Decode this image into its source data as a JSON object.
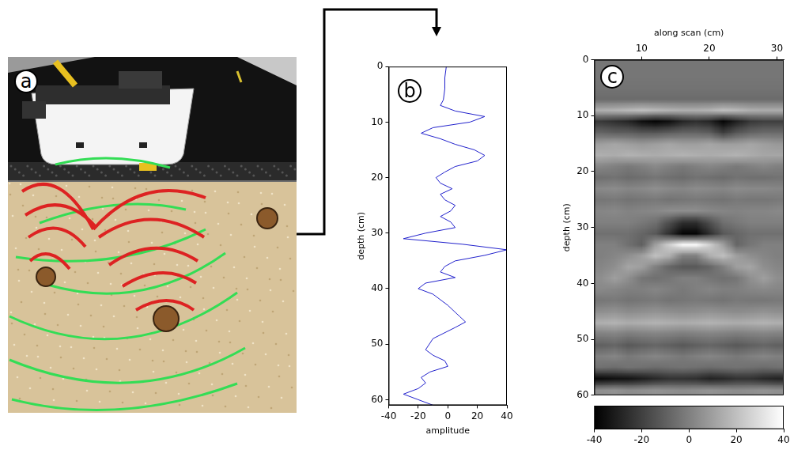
{
  "diagram": {
    "panel_label": "a"
  },
  "chart_data": [
    {
      "type": "line",
      "panel_label": "b",
      "x_label": "amplitude",
      "y_label": "depth (cm)",
      "series": [
        {
          "color": "#2222cc",
          "x": [
            -1,
            -2,
            -2,
            -3,
            -5,
            5,
            25,
            15,
            -10,
            -18,
            -5,
            5,
            18,
            25,
            20,
            5,
            -2,
            -8,
            -5,
            3,
            -5,
            -2,
            5,
            2,
            -5,
            2,
            5,
            -15,
            -30,
            10,
            40,
            25,
            5,
            -2,
            -5,
            5,
            -15,
            -20,
            -10,
            0,
            8,
            12,
            5,
            -10,
            -15,
            -10,
            -2,
            0,
            -12,
            -18,
            -15,
            -20,
            -30,
            -20,
            -10
          ],
          "y": [
            0,
            2,
            4,
            6,
            7,
            8,
            9,
            10,
            11,
            12,
            13,
            14,
            15,
            16,
            17,
            18,
            19,
            20,
            21,
            22,
            23,
            24,
            25,
            26,
            27,
            28,
            29,
            30,
            31,
            32,
            33,
            34,
            35,
            36,
            37,
            38,
            39,
            40,
            41,
            43,
            45,
            46,
            47,
            49,
            51,
            52,
            53,
            54,
            55,
            56,
            57,
            58,
            59,
            60,
            61
          ]
        }
      ],
      "xlim": [
        -40,
        40
      ],
      "xticks": [
        -40,
        -20,
        0,
        20,
        40
      ],
      "ylim": [
        0,
        61
      ],
      "yticks": [
        0,
        10,
        20,
        30,
        40,
        50,
        60
      ],
      "grid": false
    },
    {
      "type": "heatmap",
      "panel_label": "c",
      "x_label": "along scan (cm)",
      "y_label": "depth (cm)",
      "x": [
        4,
        6,
        8,
        10,
        12,
        14,
        16,
        18,
        20,
        22,
        24,
        26,
        28,
        30
      ],
      "y": [
        1,
        3,
        5,
        7,
        9,
        11,
        13,
        15,
        17,
        19,
        21,
        23,
        25,
        27,
        29,
        31,
        33,
        35,
        37,
        39,
        41,
        43,
        45,
        47,
        49,
        51,
        53,
        55,
        57,
        59
      ],
      "cells": [
        [
          -3,
          -3,
          -3,
          -3,
          -3,
          -3,
          -3,
          -3,
          -3,
          -3,
          -3,
          -3,
          -3,
          -3
        ],
        [
          -3,
          -3,
          -3,
          -3,
          -3,
          -3,
          -3,
          -3,
          -3,
          -3,
          -3,
          -3,
          -3,
          -3
        ],
        [
          -4,
          -4,
          -4,
          -4,
          -4,
          -4,
          -4,
          -4,
          -4,
          -4,
          -4,
          -4,
          -4,
          -4
        ],
        [
          -6,
          -6,
          -6,
          -6,
          -6,
          -6,
          -6,
          -6,
          -6,
          -6,
          -6,
          -6,
          -6,
          -6
        ],
        [
          15,
          16,
          18,
          20,
          18,
          16,
          15,
          15,
          16,
          20,
          18,
          15,
          14,
          14
        ],
        [
          -22,
          -25,
          -28,
          -35,
          -38,
          -35,
          -28,
          -25,
          -28,
          -38,
          -30,
          -22,
          -20,
          -20
        ],
        [
          -8,
          -10,
          -10,
          -12,
          -12,
          -10,
          -8,
          -8,
          -10,
          -20,
          -12,
          -8,
          -6,
          -6
        ],
        [
          10,
          12,
          10,
          8,
          10,
          12,
          10,
          10,
          12,
          10,
          10,
          12,
          10,
          8
        ],
        [
          15,
          14,
          16,
          15,
          14,
          15,
          16,
          15,
          14,
          15,
          16,
          14,
          12,
          12
        ],
        [
          2,
          0,
          -2,
          0,
          3,
          0,
          -2,
          0,
          2,
          0,
          -2,
          0,
          2,
          0
        ],
        [
          -5,
          -4,
          -6,
          -5,
          -3,
          -5,
          -6,
          -4,
          -5,
          -6,
          -4,
          -5,
          -5,
          -4
        ],
        [
          3,
          4,
          2,
          3,
          5,
          3,
          2,
          4,
          3,
          2,
          4,
          3,
          3,
          2
        ],
        [
          -3,
          -2,
          -4,
          -3,
          -2,
          -4,
          -3,
          -2,
          -3,
          -4,
          -2,
          -3,
          -3,
          -2
        ],
        [
          2,
          3,
          1,
          2,
          3,
          5,
          5,
          5,
          3,
          2,
          1,
          2,
          2,
          3
        ],
        [
          0,
          0,
          0,
          -2,
          -5,
          -15,
          -25,
          -25,
          -15,
          -5,
          -2,
          0,
          0,
          0
        ],
        [
          -5,
          -5,
          -5,
          -8,
          -12,
          -25,
          -38,
          -38,
          -25,
          -12,
          -8,
          -5,
          -5,
          -5
        ],
        [
          0,
          0,
          -5,
          -10,
          10,
          25,
          38,
          38,
          25,
          10,
          -8,
          -3,
          0,
          0
        ],
        [
          0,
          2,
          5,
          10,
          20,
          15,
          0,
          0,
          15,
          20,
          10,
          5,
          2,
          0
        ],
        [
          2,
          5,
          12,
          10,
          0,
          -8,
          -12,
          -12,
          -8,
          0,
          10,
          12,
          5,
          2
        ],
        [
          5,
          10,
          5,
          -3,
          -5,
          -3,
          0,
          0,
          -3,
          -5,
          -3,
          5,
          10,
          5
        ],
        [
          3,
          2,
          0,
          0,
          2,
          0,
          -2,
          0,
          2,
          0,
          0,
          2,
          3,
          2
        ],
        [
          -3,
          -2,
          -4,
          -3,
          -2,
          -4,
          -3,
          -2,
          -3,
          -4,
          -2,
          -3,
          -3,
          -2
        ],
        [
          5,
          6,
          4,
          5,
          6,
          5,
          4,
          5,
          6,
          5,
          4,
          5,
          6,
          5
        ],
        [
          15,
          16,
          14,
          15,
          16,
          15,
          14,
          15,
          16,
          15,
          14,
          15,
          16,
          15
        ],
        [
          0,
          1,
          -1,
          0,
          1,
          0,
          -1,
          0,
          1,
          0,
          -1,
          0,
          1,
          0
        ],
        [
          -10,
          -8,
          -12,
          -10,
          -8,
          -10,
          -12,
          -10,
          -8,
          -10,
          -12,
          -10,
          -8,
          -10
        ],
        [
          0,
          2,
          -2,
          0,
          2,
          0,
          -2,
          0,
          2,
          0,
          -2,
          0,
          2,
          0
        ],
        [
          -5,
          -6,
          -4,
          -5,
          -6,
          -5,
          -4,
          -5,
          -6,
          -5,
          -4,
          -5,
          -6,
          -5
        ],
        [
          -38,
          -36,
          -35,
          -32,
          -28,
          -25,
          -25,
          -26,
          -30,
          -28,
          -25,
          -25,
          -28,
          -30
        ],
        [
          5,
          6,
          4,
          5,
          6,
          5,
          4,
          5,
          6,
          5,
          4,
          5,
          6,
          5
        ]
      ],
      "xlim": [
        3,
        31
      ],
      "xticks": [
        10,
        20,
        30
      ],
      "ylim": [
        0,
        60
      ],
      "yticks": [
        0,
        10,
        20,
        30,
        40,
        50,
        60
      ],
      "grid": false,
      "colorbar": {
        "range": [
          -40,
          40
        ],
        "ticks": [
          -40,
          -20,
          0,
          20,
          40
        ],
        "colors": [
          "#000000",
          "#ffffff"
        ]
      }
    }
  ]
}
